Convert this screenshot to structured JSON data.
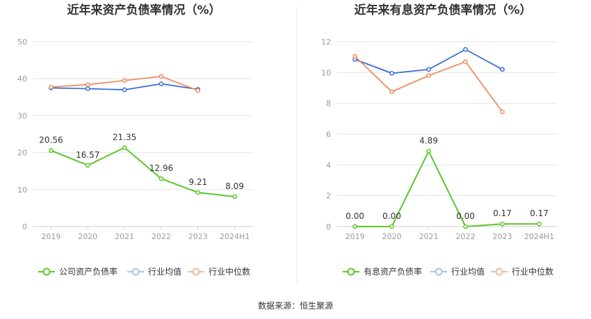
{
  "source_note": "数据来源：恒生聚源",
  "colors": {
    "company": "#5ac729",
    "industry_avg": "#3b6fd6",
    "industry_median": "#f08a5d",
    "legend_avg_light": "#a9c3f0",
    "legend_median_light": "#f6b89c",
    "grid": "#e6e6e6",
    "axis": "#cccccc"
  },
  "chart_data": [
    {
      "type": "line",
      "title": "近年来资产负债率情况（%）",
      "categories": [
        "2019",
        "2020",
        "2021",
        "2022",
        "2023",
        "2024H1"
      ],
      "ylim": [
        0,
        50
      ],
      "yticks": [
        0,
        10,
        20,
        30,
        40,
        50
      ],
      "grid": true,
      "legend_position": "bottom",
      "series": [
        {
          "name": "公司资产负债率",
          "key": "company",
          "values": [
            20.56,
            16.57,
            21.35,
            12.96,
            9.21,
            8.09
          ],
          "labels": [
            "20.56",
            "16.57",
            "21.35",
            "12.96",
            "9.21",
            "8.09"
          ]
        },
        {
          "name": "行业均值",
          "key": "industry_avg",
          "values": [
            37.5,
            37.3,
            37.0,
            38.6,
            37.1,
            null
          ]
        },
        {
          "name": "行业中位数",
          "key": "industry_median",
          "values": [
            37.7,
            38.4,
            39.5,
            40.6,
            36.8,
            null
          ]
        }
      ]
    },
    {
      "type": "line",
      "title": "近年来有息资产负债率情况（%）",
      "categories": [
        "2019",
        "2020",
        "2021",
        "2022",
        "2023",
        "2024H1"
      ],
      "ylim": [
        0,
        12
      ],
      "yticks": [
        0,
        2,
        4,
        6,
        8,
        10,
        12
      ],
      "grid": true,
      "legend_position": "bottom",
      "series": [
        {
          "name": "有息资产负债率",
          "key": "company",
          "values": [
            0.0,
            0.0,
            4.89,
            0.0,
            0.17,
            0.17
          ],
          "labels": [
            "0.00",
            "0.00",
            "4.89",
            "0.00",
            "0.17",
            "0.17"
          ]
        },
        {
          "name": "行业均值",
          "key": "industry_avg",
          "values": [
            10.85,
            9.95,
            10.2,
            11.5,
            10.2,
            null
          ]
        },
        {
          "name": "行业中位数",
          "key": "industry_median",
          "values": [
            11.05,
            8.75,
            9.8,
            10.7,
            7.45,
            null
          ]
        }
      ]
    }
  ]
}
